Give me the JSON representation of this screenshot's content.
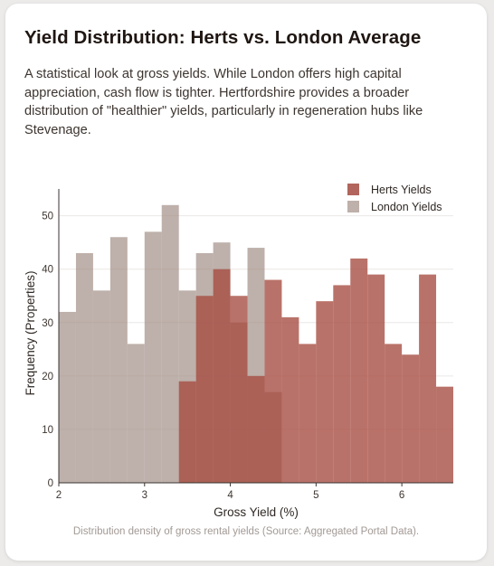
{
  "page": {
    "title": "Yield Distribution: Herts vs. London Average",
    "description": "A statistical look at gross yields. While London offers high capital appreciation, cash flow is tighter. Hertfordshire provides a broader distribution of \"healthier\" yields, particularly in regeneration hubs like Stevenage.",
    "caption": "Distribution density of gross rental yields (Source: Aggregated Portal Data)."
  },
  "chart_data": {
    "type": "bar",
    "subtype": "overlaid-histogram",
    "xlabel": "Gross Yield (%)",
    "ylabel": "Frequency (Properties)",
    "xlim": [
      2,
      6.6
    ],
    "ylim": [
      0,
      54
    ],
    "xticks": [
      2,
      3,
      4,
      5,
      6
    ],
    "yticks": [
      0,
      10,
      20,
      30,
      40,
      50
    ],
    "grid": "horizontal",
    "legend_position": "top-right",
    "series": [
      {
        "name": "London Yields",
        "color": "#a59289",
        "bins": [
          {
            "x0": 2.0,
            "x1": 2.2,
            "value": 32
          },
          {
            "x0": 2.2,
            "x1": 2.4,
            "value": 43
          },
          {
            "x0": 2.4,
            "x1": 2.6,
            "value": 36
          },
          {
            "x0": 2.6,
            "x1": 2.8,
            "value": 46
          },
          {
            "x0": 2.8,
            "x1": 3.0,
            "value": 26
          },
          {
            "x0": 3.0,
            "x1": 3.2,
            "value": 47
          },
          {
            "x0": 3.2,
            "x1": 3.4,
            "value": 52
          },
          {
            "x0": 3.4,
            "x1": 3.6,
            "value": 36
          },
          {
            "x0": 3.6,
            "x1": 3.8,
            "value": 43
          },
          {
            "x0": 3.8,
            "x1": 4.0,
            "value": 45
          },
          {
            "x0": 4.0,
            "x1": 4.2,
            "value": 30
          },
          {
            "x0": 4.2,
            "x1": 4.4,
            "value": 44
          },
          {
            "x0": 4.4,
            "x1": 4.6,
            "value": 17
          }
        ]
      },
      {
        "name": "Herts Yields",
        "color": "#a54a3f",
        "bins": [
          {
            "x0": 3.4,
            "x1": 3.6,
            "value": 19
          },
          {
            "x0": 3.6,
            "x1": 3.8,
            "value": 35
          },
          {
            "x0": 3.8,
            "x1": 4.0,
            "value": 40
          },
          {
            "x0": 4.0,
            "x1": 4.2,
            "value": 35
          },
          {
            "x0": 4.2,
            "x1": 4.4,
            "value": 20
          },
          {
            "x0": 4.4,
            "x1": 4.6,
            "value": 38
          },
          {
            "x0": 4.6,
            "x1": 4.8,
            "value": 31
          },
          {
            "x0": 4.8,
            "x1": 5.0,
            "value": 26
          },
          {
            "x0": 5.0,
            "x1": 5.2,
            "value": 34
          },
          {
            "x0": 5.2,
            "x1": 5.4,
            "value": 37
          },
          {
            "x0": 5.4,
            "x1": 5.6,
            "value": 42
          },
          {
            "x0": 5.6,
            "x1": 5.8,
            "value": 39
          },
          {
            "x0": 5.8,
            "x1": 6.0,
            "value": 26
          },
          {
            "x0": 6.0,
            "x1": 6.2,
            "value": 24
          },
          {
            "x0": 6.2,
            "x1": 6.4,
            "value": 39
          },
          {
            "x0": 6.4,
            "x1": 6.6,
            "value": 18
          }
        ]
      }
    ],
    "legend": [
      {
        "name": "Herts Yields",
        "color": "#a54a3f"
      },
      {
        "name": "London Yields",
        "color": "#a59289"
      }
    ]
  }
}
